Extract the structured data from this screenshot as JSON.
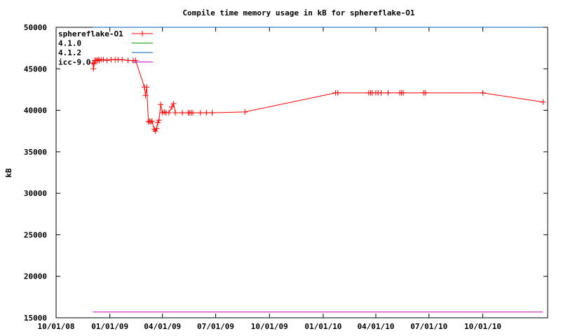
{
  "chart_data": {
    "type": "line",
    "title": "Compile time memory usage in kB for sphereflake-O1",
    "ylabel": "kB",
    "xlabel": "",
    "ylim": [
      15000,
      50000
    ],
    "xlim": [
      "2008-10-01",
      "2011-01-20"
    ],
    "yticks": [
      15000,
      20000,
      25000,
      30000,
      35000,
      40000,
      45000,
      50000
    ],
    "xticks": [
      "2008-10-01",
      "2009-01-01",
      "2009-04-01",
      "2009-07-01",
      "2009-10-01",
      "2010-01-01",
      "2010-04-01",
      "2010-07-01",
      "2010-10-01"
    ],
    "xticklabels": [
      "10/01/08",
      "01/01/09",
      "04/01/09",
      "07/01/09",
      "10/01/09",
      "01/01/10",
      "04/01/10",
      "07/01/10",
      "10/01/10"
    ],
    "legend_position": "top-left",
    "grid": false,
    "series": [
      {
        "name": "sphereflake-O1",
        "color": "#ff0000",
        "marker": "plus",
        "points": [
          [
            "2008-12-03",
            45700
          ],
          [
            "2008-12-04",
            45000
          ],
          [
            "2008-12-05",
            45600
          ],
          [
            "2008-12-06",
            46000
          ],
          [
            "2008-12-08",
            46000
          ],
          [
            "2008-12-10",
            46000
          ],
          [
            "2008-12-12",
            46100
          ],
          [
            "2008-12-14",
            46000
          ],
          [
            "2008-12-17",
            46100
          ],
          [
            "2008-12-21",
            46100
          ],
          [
            "2008-12-27",
            46000
          ],
          [
            "2009-01-03",
            46100
          ],
          [
            "2009-01-10",
            46100
          ],
          [
            "2009-01-15",
            46100
          ],
          [
            "2009-01-22",
            46100
          ],
          [
            "2009-02-01",
            46000
          ],
          [
            "2009-02-10",
            46000
          ],
          [
            "2009-02-14",
            46000
          ],
          [
            "2009-03-01",
            42800
          ],
          [
            "2009-03-03",
            41800
          ],
          [
            "2009-03-05",
            42800
          ],
          [
            "2009-03-08",
            38600
          ],
          [
            "2009-03-10",
            38700
          ],
          [
            "2009-03-12",
            38600
          ],
          [
            "2009-03-14",
            38700
          ],
          [
            "2009-03-18",
            37700
          ],
          [
            "2009-03-20",
            37500
          ],
          [
            "2009-03-22",
            37800
          ],
          [
            "2009-03-24",
            38500
          ],
          [
            "2009-03-26",
            38800
          ],
          [
            "2009-03-29",
            40700
          ],
          [
            "2009-04-01",
            39700
          ],
          [
            "2009-04-04",
            39800
          ],
          [
            "2009-04-07",
            39700
          ],
          [
            "2009-04-12",
            39700
          ],
          [
            "2009-04-17",
            40400
          ],
          [
            "2009-04-20",
            40800
          ],
          [
            "2009-04-23",
            39700
          ],
          [
            "2009-05-05",
            39700
          ],
          [
            "2009-05-15",
            39700
          ],
          [
            "2009-05-17",
            39700
          ],
          [
            "2009-05-20",
            39700
          ],
          [
            "2009-05-23",
            39700
          ],
          [
            "2009-06-05",
            39700
          ],
          [
            "2009-06-15",
            39700
          ],
          [
            "2009-06-25",
            39700
          ],
          [
            "2009-08-20",
            39800
          ],
          [
            "2010-01-22",
            42100
          ],
          [
            "2010-01-26",
            42100
          ],
          [
            "2010-03-20",
            42100
          ],
          [
            "2010-03-23",
            42100
          ],
          [
            "2010-03-26",
            42100
          ],
          [
            "2010-04-01",
            42100
          ],
          [
            "2010-04-05",
            42100
          ],
          [
            "2010-04-10",
            42100
          ],
          [
            "2010-04-22",
            42100
          ],
          [
            "2010-05-12",
            42100
          ],
          [
            "2010-05-15",
            42100
          ],
          [
            "2010-05-18",
            42100
          ],
          [
            "2010-06-22",
            42100
          ],
          [
            "2010-06-25",
            42100
          ],
          [
            "2010-10-01",
            42100
          ],
          [
            "2011-01-12",
            41000
          ]
        ]
      },
      {
        "name": "4.1.0",
        "color": "#00a000",
        "marker": "none",
        "points": [
          [
            "2008-12-03",
            50000
          ],
          [
            "2011-01-12",
            50000
          ]
        ]
      },
      {
        "name": "4.1.2",
        "color": "#0060ad",
        "marker": "none",
        "points": [
          [
            "2008-12-03",
            50000
          ],
          [
            "2011-01-12",
            50000
          ]
        ]
      },
      {
        "name": "icc-9.0",
        "color": "#c000c0",
        "marker": "none",
        "points": [
          [
            "2008-12-03",
            15700
          ],
          [
            "2011-01-12",
            15700
          ]
        ]
      }
    ]
  }
}
